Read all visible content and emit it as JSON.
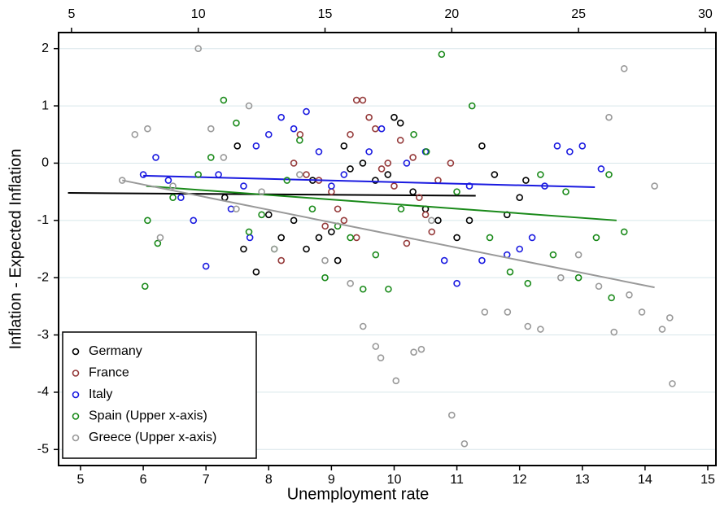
{
  "chart_data": {
    "type": "scatter",
    "xlabel": "Unemployment rate",
    "ylabel": "Inflation - Expected Inflation",
    "xlim": [
      4.65,
      15.13
    ],
    "xticks": [
      5,
      6,
      7,
      8,
      9,
      10,
      11,
      12,
      13,
      14,
      15
    ],
    "x2lim": [
      4.49,
      30.42
    ],
    "x2ticks": [
      5,
      10,
      15,
      20,
      25,
      30
    ],
    "ylim": [
      -5.28,
      2.28
    ],
    "yticks": [
      -5,
      -4,
      -3,
      -2,
      -1,
      0,
      1,
      2
    ],
    "grid": true,
    "legend": "lower left",
    "series": [
      {
        "name": "Germany",
        "color": "#000000",
        "axis": "x",
        "x": [
          7.3,
          7.5,
          7.6,
          7.8,
          8.0,
          8.2,
          8.4,
          8.6,
          8.8,
          9.0,
          9.2,
          9.3,
          9.5,
          9.7,
          9.9,
          10.0,
          10.1,
          10.3,
          10.5,
          10.7,
          11.0,
          11.2,
          11.4,
          11.6,
          11.8,
          12.0,
          12.1,
          9.1,
          8.7
        ],
        "values": [
          -0.6,
          0.3,
          -1.5,
          -1.9,
          -0.9,
          -1.3,
          -1.0,
          -1.5,
          -1.3,
          -1.2,
          0.3,
          -0.1,
          0.0,
          -0.3,
          -0.2,
          0.8,
          0.7,
          -0.5,
          -0.8,
          -1.0,
          -1.3,
          -1.0,
          0.3,
          -0.2,
          -0.9,
          -0.6,
          -0.3,
          -1.7,
          -0.3
        ],
        "fit": {
          "x": [
            4.8,
            11.3
          ],
          "values": [
            -0.52,
            -0.57
          ]
        }
      },
      {
        "name": "France",
        "color": "#953a3a",
        "axis": "x",
        "x": [
          8.2,
          8.4,
          8.6,
          8.8,
          9.0,
          9.1,
          9.2,
          9.3,
          9.4,
          9.5,
          9.6,
          9.7,
          9.8,
          9.9,
          10.0,
          10.1,
          10.3,
          10.4,
          10.5,
          10.6,
          10.7,
          10.9,
          8.9,
          9.4,
          10.2,
          8.5
        ],
        "values": [
          -1.7,
          0.0,
          -0.2,
          -0.3,
          -0.5,
          -0.8,
          -1.0,
          0.5,
          1.1,
          1.1,
          0.8,
          0.6,
          -0.1,
          0.0,
          -0.4,
          0.4,
          0.1,
          -0.6,
          -0.9,
          -1.2,
          -0.3,
          0.0,
          -1.1,
          -1.3,
          -1.4,
          0.5
        ]
      },
      {
        "name": "Italy",
        "color": "#1a1ae0",
        "axis": "x",
        "x": [
          6.0,
          6.2,
          6.4,
          6.6,
          6.8,
          7.0,
          7.2,
          7.4,
          7.6,
          7.8,
          8.0,
          8.2,
          8.4,
          8.6,
          8.8,
          9.0,
          9.2,
          9.6,
          9.8,
          10.2,
          10.5,
          10.8,
          11.0,
          11.4,
          11.8,
          12.0,
          12.2,
          12.4,
          12.6,
          12.8,
          13.0,
          13.3,
          7.7,
          11.2
        ],
        "values": [
          -0.2,
          0.1,
          -0.3,
          -0.6,
          -1.0,
          -1.8,
          -0.2,
          -0.8,
          -0.4,
          0.3,
          0.5,
          0.8,
          0.6,
          0.9,
          0.2,
          -0.4,
          -0.2,
          0.2,
          0.6,
          0.0,
          0.2,
          -1.7,
          -2.1,
          -1.7,
          -1.6,
          -1.5,
          -1.3,
          -0.4,
          0.3,
          0.2,
          0.3,
          -0.1,
          -1.3,
          -0.4
        ],
        "fit": {
          "x": [
            6.0,
            13.2
          ],
          "values": [
            -0.22,
            -0.42
          ]
        }
      },
      {
        "name": "Spain (Upper x-axis)",
        "color": "#1a8a1a",
        "axis": "x2",
        "x": [
          8,
          9,
          10,
          10.5,
          11,
          11.5,
          12,
          12.5,
          13,
          13.5,
          14,
          14.5,
          15,
          15.5,
          16,
          16.5,
          17,
          17.5,
          18,
          18.5,
          19,
          19.6,
          20.2,
          20.8,
          21.5,
          22.3,
          23,
          23.5,
          24,
          24.5,
          25,
          25.7,
          26.2,
          26.3,
          26.8,
          7.9,
          8.4
        ],
        "values": [
          -1.0,
          -0.6,
          -0.2,
          0.1,
          1.1,
          0.7,
          -1.2,
          -0.9,
          -1.5,
          -0.3,
          0.4,
          -0.8,
          -2.0,
          -1.1,
          -1.3,
          -2.2,
          -1.6,
          -2.2,
          -0.8,
          0.5,
          0.2,
          1.9,
          -0.5,
          1.0,
          -1.3,
          -1.9,
          -2.1,
          -0.2,
          -1.6,
          -0.5,
          -2.0,
          -1.3,
          -0.2,
          -2.35,
          -1.2,
          -2.15,
          -1.4
        ],
        "fit": {
          "x": [
            7.95,
            26.5
          ],
          "values": [
            -0.4,
            -1.0
          ]
        }
      },
      {
        "name": "Greece (Upper x-axis)",
        "color": "#999999",
        "axis": "x2",
        "x": [
          7,
          7.5,
          8,
          8.5,
          9,
          10,
          10.5,
          11,
          11.5,
          12,
          12.5,
          13,
          14,
          15,
          16,
          16.5,
          17,
          17.2,
          17.8,
          18.5,
          18.8,
          19.2,
          20,
          20.5,
          21.3,
          22.2,
          23,
          23.5,
          24.3,
          25,
          25.8,
          26.2,
          26.4,
          26.8,
          27,
          27.5,
          28,
          28.3,
          28.7,
          28.6
        ],
        "values": [
          -0.3,
          0.5,
          0.6,
          -1.3,
          -0.4,
          2.0,
          0.6,
          0.1,
          -0.8,
          1.0,
          -0.5,
          -1.5,
          -0.2,
          -1.7,
          -2.1,
          -2.85,
          -3.2,
          -3.4,
          -3.8,
          -3.3,
          -3.25,
          -1.0,
          -4.4,
          -4.9,
          -2.6,
          -2.6,
          -2.85,
          -2.9,
          -2.0,
          -1.6,
          -2.15,
          0.8,
          -2.95,
          1.65,
          -2.3,
          -2.6,
          -0.4,
          -2.9,
          -3.85,
          -2.7
        ],
        "fit": {
          "x": [
            7.0,
            28.0
          ],
          "values": [
            -0.3,
            -2.17
          ]
        }
      }
    ]
  }
}
